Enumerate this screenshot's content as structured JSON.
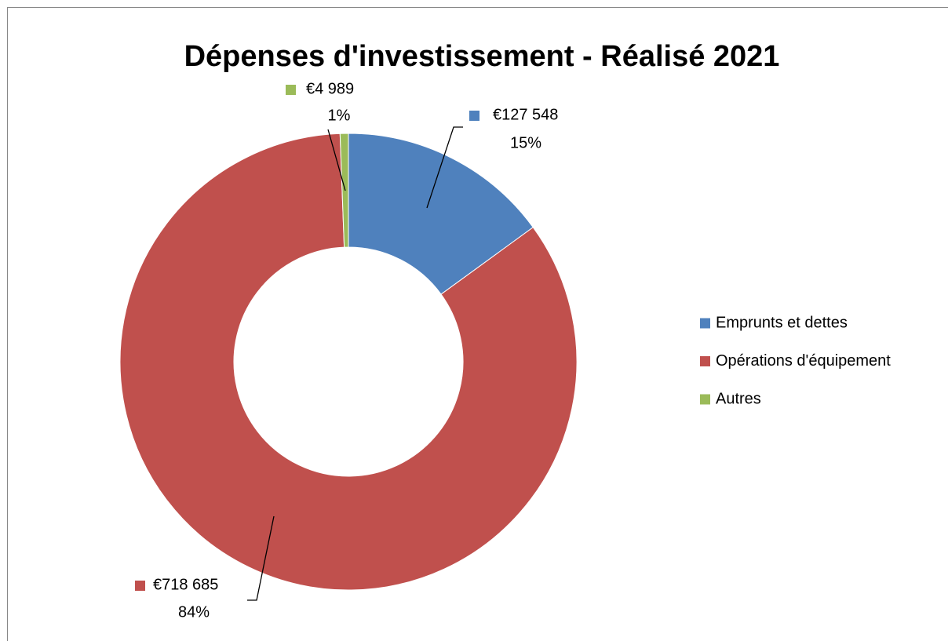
{
  "chart_data": {
    "type": "donut",
    "title": "Dépenses d'investissement - Réalisé 2021",
    "categories": [
      "Emprunts et dettes",
      "Opérations d'équipement",
      "Autres"
    ],
    "values": [
      127548,
      718685,
      4989
    ],
    "value_labels": [
      "€127 548",
      "€718 685",
      "€4 989"
    ],
    "percent_labels": [
      "15%",
      "84%",
      "1%"
    ],
    "colors": [
      "#4f81bd",
      "#c0504d",
      "#9bbb59"
    ],
    "legend": "right"
  }
}
